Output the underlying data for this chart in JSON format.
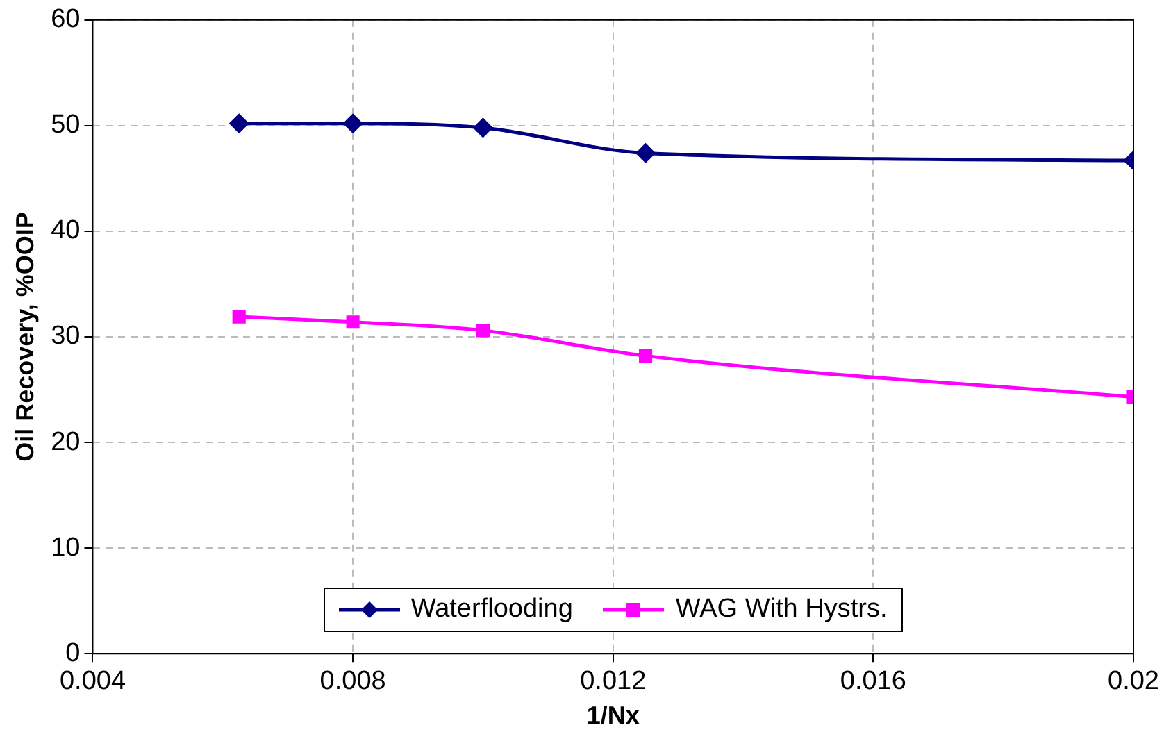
{
  "chart_data": {
    "type": "line",
    "xlabel": "1/Nx",
    "ylabel": "Oil Recovery, %OOIP",
    "x": [
      0.00625,
      0.008,
      0.01,
      0.0125,
      0.02
    ],
    "series": [
      {
        "name": "Waterflooding",
        "color": "#000080",
        "marker": "diamond",
        "values": [
          50.2,
          50.2,
          49.8,
          47.4,
          46.7
        ]
      },
      {
        "name": "WAG With Hystrs.",
        "color": "#ff00ff",
        "marker": "square",
        "values": [
          31.9,
          31.4,
          30.6,
          28.2,
          24.3
        ]
      }
    ],
    "xlim": [
      0.004,
      0.02
    ],
    "xticks": [
      0.004,
      0.008,
      0.012,
      0.016,
      0.02
    ],
    "ylim": [
      0,
      60
    ],
    "yticks": [
      0,
      10,
      20,
      30,
      40,
      50,
      60
    ],
    "grid": true,
    "legend": "bottom",
    "line_style": "solid"
  }
}
